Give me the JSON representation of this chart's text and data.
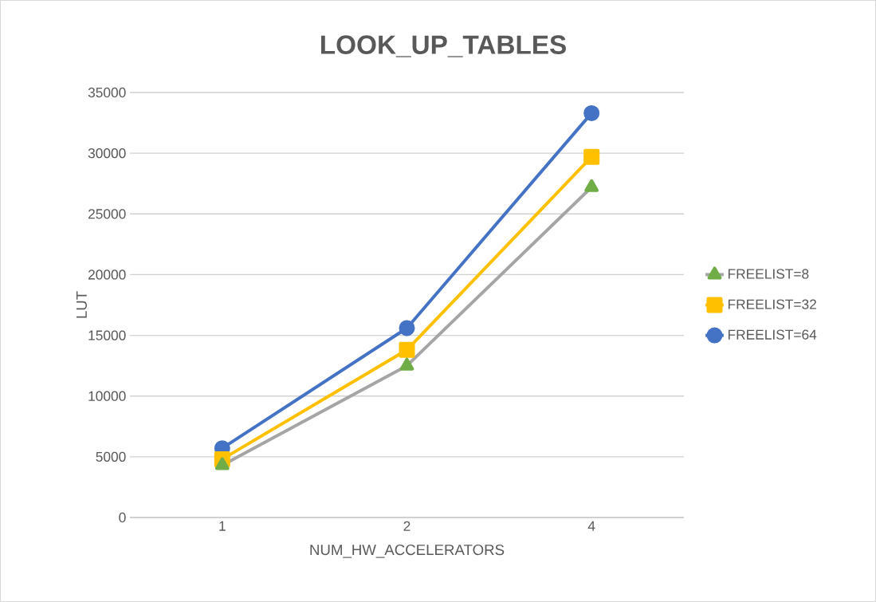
{
  "chart_data": {
    "type": "line",
    "title": "LOOK_UP_TABLES",
    "xlabel": "NUM_HW_ACCELERATORS",
    "ylabel": "LUT",
    "categories": [
      "1",
      "2",
      "4"
    ],
    "series": [
      {
        "name": "FREELIST=8",
        "color": "#a5a5a5",
        "marker": "triangle",
        "values": [
          4300,
          12500,
          27200
        ]
      },
      {
        "name": "FREELIST=32",
        "color": "#ffc000",
        "marker": "square",
        "values": [
          4800,
          13800,
          29700
        ]
      },
      {
        "name": "FREELIST=64",
        "color": "#4472c4",
        "marker": "circle",
        "values": [
          5700,
          15600,
          33300
        ]
      }
    ],
    "ylim": [
      0,
      35000
    ],
    "yticks": [
      0,
      5000,
      10000,
      15000,
      20000,
      25000,
      30000,
      35000
    ],
    "grid": "y",
    "legend": "right",
    "line_style": "solid"
  }
}
